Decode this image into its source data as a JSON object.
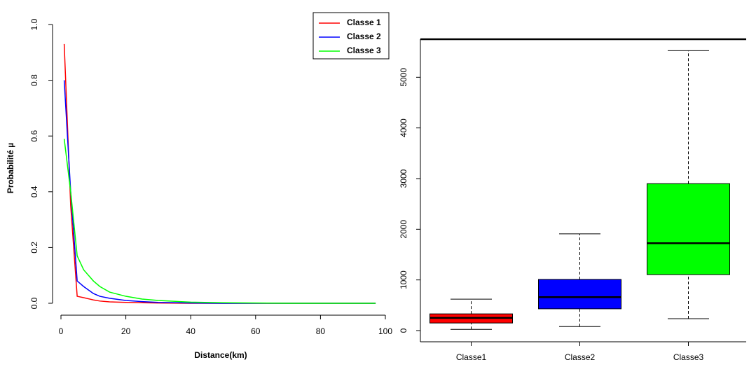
{
  "chart_data": [
    {
      "type": "line",
      "xlabel": "Distance(km)",
      "ylabel": "Probabilité µ",
      "x": [
        1,
        3,
        5,
        7,
        10,
        12,
        15,
        20,
        25,
        30,
        40,
        50,
        60,
        70,
        80,
        90,
        97
      ],
      "series": [
        {
          "name": "Classe 1",
          "color": "#ff0000",
          "values": [
            0.93,
            0.35,
            0.025,
            0.02,
            0.012,
            0.008,
            0.005,
            0.003,
            0.002,
            0.001,
            0,
            0,
            0,
            0,
            0,
            0,
            0
          ]
        },
        {
          "name": "Classe 2",
          "color": "#0000ff",
          "values": [
            0.8,
            0.4,
            0.08,
            0.06,
            0.035,
            0.025,
            0.018,
            0.01,
            0.006,
            0.003,
            0.001,
            0,
            0,
            0,
            0,
            0,
            0
          ]
        },
        {
          "name": "Classe 3",
          "color": "#00ff00",
          "values": [
            0.59,
            0.4,
            0.17,
            0.12,
            0.08,
            0.06,
            0.04,
            0.025,
            0.015,
            0.01,
            0.004,
            0.002,
            0.001,
            0,
            0,
            0,
            0
          ]
        }
      ],
      "xlim": [
        0,
        100
      ],
      "xticks": [
        0,
        20,
        40,
        60,
        80,
        100
      ],
      "ylim": [
        0,
        1
      ],
      "yticks": [
        {
          "value": 0,
          "label": "0.0"
        },
        0.2,
        0.4,
        0.6,
        0.8,
        {
          "value": 1,
          "label": "1.0"
        }
      ],
      "legend": "top-right"
    },
    {
      "type": "box",
      "categories": [
        "Classe1",
        "Classe2",
        "Classe3"
      ],
      "colors": [
        "#ff0000",
        "#0000ff",
        "#00ff00"
      ],
      "min": [
        25,
        80,
        235
      ],
      "q1": [
        150,
        430,
        1105
      ],
      "median": [
        250,
        660,
        1725
      ],
      "q3": [
        330,
        1010,
        2900
      ],
      "max": [
        620,
        1910,
        5525
      ],
      "ylim": [
        -221,
        5751
      ],
      "yticks": [
        0,
        1000,
        2000,
        3000,
        4000,
        5000
      ]
    }
  ]
}
